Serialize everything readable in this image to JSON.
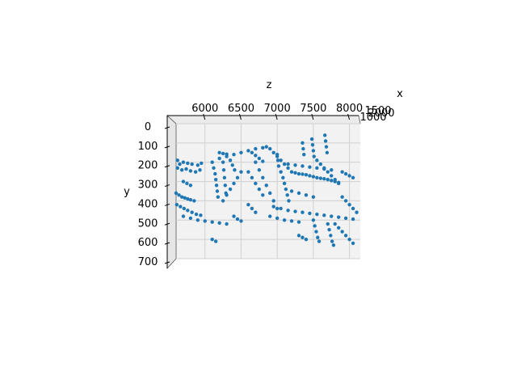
{
  "chart_data": {
    "type": "scatter",
    "projection": "3d",
    "view": "looking along the x axis; z horizontal on top, y vertical increasing downward",
    "title": "",
    "xlabel": "x",
    "ylabel": "y",
    "zlabel": "z",
    "zlim": [
      5600,
      8150
    ],
    "ylim": [
      0,
      700
    ],
    "z_ticks": [
      "6000",
      "6500",
      "7000",
      "7500",
      "8000"
    ],
    "y_ticks": [
      "0",
      "100",
      "200",
      "300",
      "400",
      "500",
      "600",
      "700"
    ],
    "x_ticks": [
      "1000",
      "1500",
      "2000"
    ],
    "x_ticks_note": "x tick labels overlap each other at the right end of the top axis",
    "marker_color": "#1f77b4",
    "grid": true,
    "pane_color": "#f2f2f2",
    "series": [
      {
        "points": [
          [
            5620,
            190
          ],
          [
            5650,
            210
          ],
          [
            5700,
            200
          ],
          [
            5760,
            205
          ],
          [
            5820,
            210
          ],
          [
            5900,
            215
          ],
          [
            5950,
            205
          ],
          [
            5620,
            230
          ],
          [
            5680,
            240
          ],
          [
            5740,
            235
          ],
          [
            5800,
            245
          ],
          [
            5870,
            250
          ],
          [
            5930,
            240
          ],
          [
            5600,
            360
          ],
          [
            5640,
            370
          ],
          [
            5680,
            380
          ],
          [
            5720,
            385
          ],
          [
            5760,
            390
          ],
          [
            5800,
            395
          ],
          [
            5850,
            400
          ],
          [
            5610,
            420
          ],
          [
            5660,
            430
          ],
          [
            5710,
            440
          ],
          [
            5760,
            450
          ],
          [
            5820,
            460
          ],
          [
            5880,
            470
          ],
          [
            5940,
            475
          ],
          [
            5700,
            480
          ],
          [
            5800,
            490
          ],
          [
            5900,
            500
          ],
          [
            6000,
            505
          ],
          [
            6100,
            510
          ],
          [
            6200,
            515
          ],
          [
            6300,
            520
          ],
          [
            6100,
            200
          ],
          [
            6120,
            230
          ],
          [
            6140,
            260
          ],
          [
            6150,
            290
          ],
          [
            6160,
            320
          ],
          [
            6170,
            350
          ],
          [
            6180,
            380
          ],
          [
            6250,
            200
          ],
          [
            6260,
            240
          ],
          [
            6270,
            280
          ],
          [
            6280,
            320
          ],
          [
            6290,
            360
          ],
          [
            6200,
            180
          ],
          [
            6300,
            170
          ],
          [
            6400,
            160
          ],
          [
            6500,
            150
          ],
          [
            6600,
            140
          ],
          [
            6700,
            130
          ],
          [
            6800,
            125
          ],
          [
            6850,
            120
          ],
          [
            6900,
            130
          ],
          [
            6950,
            150
          ],
          [
            7000,
            170
          ],
          [
            7050,
            190
          ],
          [
            7100,
            210
          ],
          [
            7150,
            230
          ],
          [
            6700,
            200
          ],
          [
            6750,
            240
          ],
          [
            6800,
            280
          ],
          [
            6850,
            320
          ],
          [
            6900,
            360
          ],
          [
            6950,
            400
          ],
          [
            7000,
            440
          ],
          [
            6600,
            250
          ],
          [
            6650,
            280
          ],
          [
            6700,
            310
          ],
          [
            6750,
            340
          ],
          [
            6800,
            370
          ],
          [
            6500,
            250
          ],
          [
            6450,
            280
          ],
          [
            6400,
            310
          ],
          [
            6350,
            340
          ],
          [
            6300,
            370
          ],
          [
            6250,
            400
          ],
          [
            7050,
            250
          ],
          [
            7080,
            280
          ],
          [
            7100,
            310
          ],
          [
            7120,
            340
          ],
          [
            7140,
            370
          ],
          [
            7160,
            400
          ],
          [
            7200,
            250
          ],
          [
            7250,
            255
          ],
          [
            7300,
            260
          ],
          [
            7350,
            262
          ],
          [
            7400,
            265
          ],
          [
            7450,
            270
          ],
          [
            7500,
            275
          ],
          [
            7550,
            280
          ],
          [
            7600,
            283
          ],
          [
            7650,
            286
          ],
          [
            7700,
            290
          ],
          [
            7750,
            295
          ],
          [
            7800,
            300
          ],
          [
            7850,
            305
          ],
          [
            7150,
            210
          ],
          [
            7250,
            215
          ],
          [
            7350,
            220
          ],
          [
            7450,
            225
          ],
          [
            7550,
            230
          ],
          [
            7650,
            235
          ],
          [
            7750,
            240
          ],
          [
            6950,
            430
          ],
          [
            7050,
            440
          ],
          [
            7150,
            450
          ],
          [
            7250,
            455
          ],
          [
            7350,
            460
          ],
          [
            7450,
            465
          ],
          [
            7550,
            470
          ],
          [
            7650,
            475
          ],
          [
            7750,
            480
          ],
          [
            7850,
            485
          ],
          [
            7950,
            490
          ],
          [
            8050,
            495
          ],
          [
            6900,
            480
          ],
          [
            7000,
            490
          ],
          [
            7100,
            500
          ],
          [
            7200,
            505
          ],
          [
            7300,
            510
          ],
          [
            7500,
            500
          ],
          [
            7520,
            530
          ],
          [
            7540,
            560
          ],
          [
            7560,
            590
          ],
          [
            7580,
            610
          ],
          [
            7700,
            520
          ],
          [
            7720,
            550
          ],
          [
            7740,
            580
          ],
          [
            7760,
            610
          ],
          [
            7780,
            630
          ],
          [
            7800,
            520
          ],
          [
            7850,
            540
          ],
          [
            7900,
            560
          ],
          [
            7950,
            580
          ],
          [
            8000,
            600
          ],
          [
            8050,
            620
          ],
          [
            7350,
            100
          ],
          [
            7360,
            130
          ],
          [
            7370,
            160
          ],
          [
            7000,
            160
          ],
          [
            7010,
            190
          ],
          [
            7020,
            220
          ],
          [
            7480,
            80
          ],
          [
            7490,
            110
          ],
          [
            7500,
            140
          ],
          [
            7510,
            170
          ],
          [
            7660,
            60
          ],
          [
            7670,
            90
          ],
          [
            7680,
            120
          ],
          [
            7690,
            150
          ],
          [
            7550,
            190
          ],
          [
            7600,
            210
          ],
          [
            7650,
            230
          ],
          [
            7700,
            250
          ],
          [
            7750,
            270
          ],
          [
            7800,
            290
          ],
          [
            7850,
            310
          ],
          [
            6650,
            150
          ],
          [
            6700,
            165
          ],
          [
            6750,
            180
          ],
          [
            6800,
            195
          ],
          [
            6350,
            190
          ],
          [
            6380,
            215
          ],
          [
            6410,
            240
          ],
          [
            7900,
            380
          ],
          [
            7950,
            400
          ],
          [
            8000,
            420
          ],
          [
            8050,
            440
          ],
          [
            8100,
            460
          ],
          [
            7200,
            350
          ],
          [
            7300,
            360
          ],
          [
            7400,
            370
          ],
          [
            7500,
            380
          ],
          [
            6200,
            150
          ],
          [
            6250,
            155
          ],
          [
            6300,
            158
          ],
          [
            5700,
            300
          ],
          [
            5750,
            310
          ],
          [
            5800,
            320
          ],
          [
            6600,
            420
          ],
          [
            6650,
            440
          ],
          [
            6700,
            460
          ],
          [
            6400,
            480
          ],
          [
            6450,
            495
          ],
          [
            6500,
            505
          ],
          [
            7900,
            250
          ],
          [
            7950,
            260
          ],
          [
            8000,
            270
          ],
          [
            8050,
            280
          ],
          [
            7300,
            580
          ],
          [
            7350,
            590
          ],
          [
            7400,
            600
          ],
          [
            6100,
            600
          ],
          [
            6150,
            610
          ]
        ]
      }
    ]
  }
}
